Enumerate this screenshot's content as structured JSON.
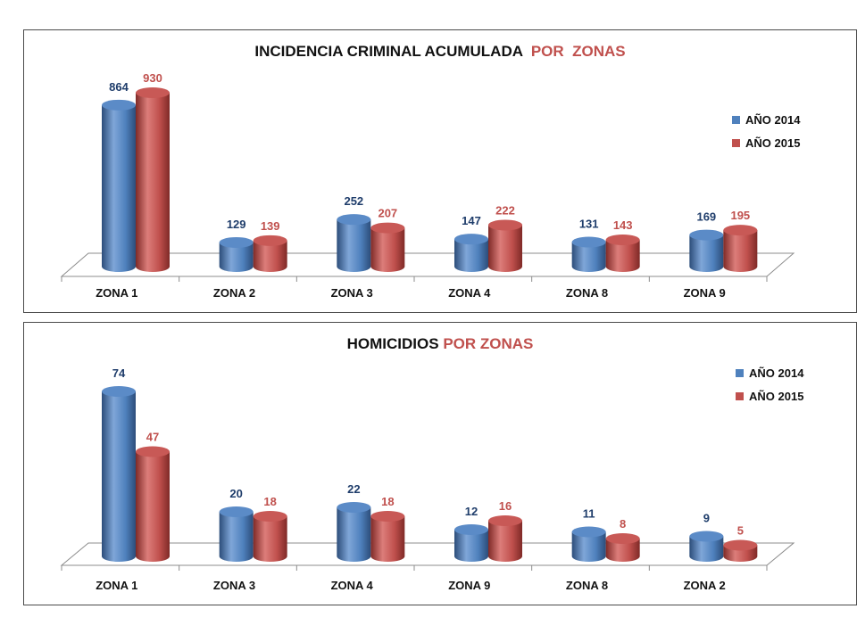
{
  "colors": {
    "s2014": "#4f81bd",
    "s2015": "#c0504d",
    "label2014": "#1f3d6b",
    "label2015": "#c0504d"
  },
  "chart_data": [
    {
      "type": "bar",
      "title_main": "INCIDENCIA CRIMINAL ACUMULADA",
      "title_highlight": "POR  ZONAS",
      "categories": [
        "ZONA 1",
        "ZONA 2",
        "ZONA 3",
        "ZONA 4",
        "ZONA 8",
        "ZONA 9"
      ],
      "series": [
        {
          "name": "AÑO 2014",
          "values": [
            864,
            129,
            252,
            147,
            131,
            169
          ]
        },
        {
          "name": "AÑO 2015",
          "values": [
            930,
            139,
            207,
            222,
            143,
            195
          ]
        }
      ],
      "ylim": [
        0,
        930
      ],
      "legend": "right"
    },
    {
      "type": "bar",
      "title_main": "HOMICIDIOS",
      "title_highlight": "POR ZONAS",
      "categories": [
        "ZONA 1",
        "ZONA 3",
        "ZONA 4",
        "ZONA 9",
        "ZONA 8",
        "ZONA 2"
      ],
      "series": [
        {
          "name": "AÑO 2014",
          "values": [
            74,
            20,
            22,
            12,
            11,
            9
          ]
        },
        {
          "name": "AÑO 2015",
          "values": [
            47,
            18,
            18,
            16,
            8,
            5
          ]
        }
      ],
      "ylim": [
        0,
        74
      ],
      "legend": "top-right"
    }
  ]
}
